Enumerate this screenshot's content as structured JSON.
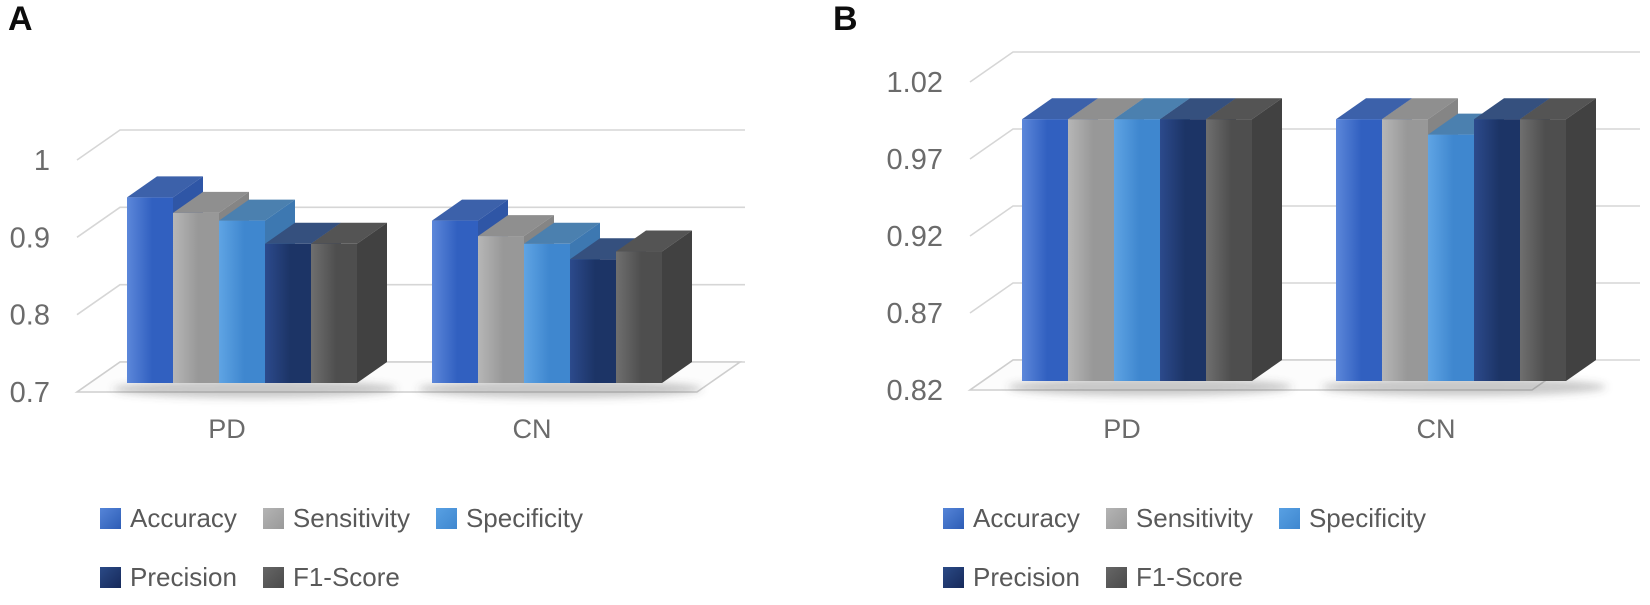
{
  "figure": {
    "panels": [
      {
        "label": "A"
      },
      {
        "label": "B"
      }
    ]
  },
  "legend": {
    "rows": [
      [
        "Accuracy",
        "Sensitivity",
        "Specificity"
      ],
      [
        "Precision",
        "F1-Score"
      ]
    ]
  },
  "series_styles": {
    "Accuracy": {
      "front_light": "#5c87da",
      "front_dark": "#3160c0",
      "top": "#3c61aa",
      "side": "#2f56a6",
      "swatch_light": "#5585d8",
      "swatch_dark": "#2d5cb5"
    },
    "Sensitivity": {
      "front_light": "#b6b6b6",
      "front_dark": "#989898",
      "top": "#8f8f8f",
      "side": "#858585",
      "swatch_light": "#b4b4b4",
      "swatch_dark": "#999999"
    },
    "Specificity": {
      "front_light": "#5fa4e4",
      "front_dark": "#3f87cf",
      "top": "#4b80af",
      "side": "#3d78b1",
      "swatch_light": "#58a0e3",
      "swatch_dark": "#3f87cf"
    },
    "Precision": {
      "front_light": "#2c4a8c",
      "front_dark": "#1c3466",
      "top": "#35507e",
      "side": "#1a2f5c",
      "swatch_light": "#2b4a86",
      "swatch_dark": "#16295a"
    },
    "F1-Score": {
      "front_light": "#6f6f6f",
      "front_dark": "#4e4e4e",
      "top": "#545454",
      "side": "#414141",
      "swatch_light": "#666666",
      "swatch_dark": "#4a4a4a"
    }
  },
  "chart_data": [
    {
      "type": "bar",
      "variant": "3d-column",
      "panel": "A",
      "categories": [
        "PD",
        "CN"
      ],
      "series": [
        {
          "name": "Accuracy",
          "values": [
            0.94,
            0.91
          ]
        },
        {
          "name": "Sensitivity",
          "values": [
            0.92,
            0.89
          ]
        },
        {
          "name": "Specificity",
          "values": [
            0.91,
            0.88
          ]
        },
        {
          "name": "Precision",
          "values": [
            0.88,
            0.86
          ]
        },
        {
          "name": "F1-Score",
          "values": [
            0.88,
            0.87
          ]
        }
      ],
      "y_axis": {
        "min": 0.7,
        "max": 1.0,
        "ticks": [
          "1",
          "0.9",
          "0.8",
          "0.7"
        ]
      },
      "grid": true,
      "legend_position": "bottom"
    },
    {
      "type": "bar",
      "variant": "3d-column",
      "panel": "B",
      "categories": [
        "PD",
        "CN"
      ],
      "series": [
        {
          "name": "Accuracy",
          "values": [
            0.99,
            0.99
          ]
        },
        {
          "name": "Sensitivity",
          "values": [
            0.99,
            0.99
          ]
        },
        {
          "name": "Specificity",
          "values": [
            0.99,
            0.98
          ]
        },
        {
          "name": "Precision",
          "values": [
            0.99,
            0.99
          ]
        },
        {
          "name": "F1-Score",
          "values": [
            0.99,
            0.99
          ]
        }
      ],
      "y_axis": {
        "min": 0.82,
        "max": 1.02,
        "ticks": [
          "1.02",
          "0.97",
          "0.92",
          "0.87",
          "0.82"
        ]
      },
      "grid": true,
      "legend_position": "bottom"
    }
  ]
}
